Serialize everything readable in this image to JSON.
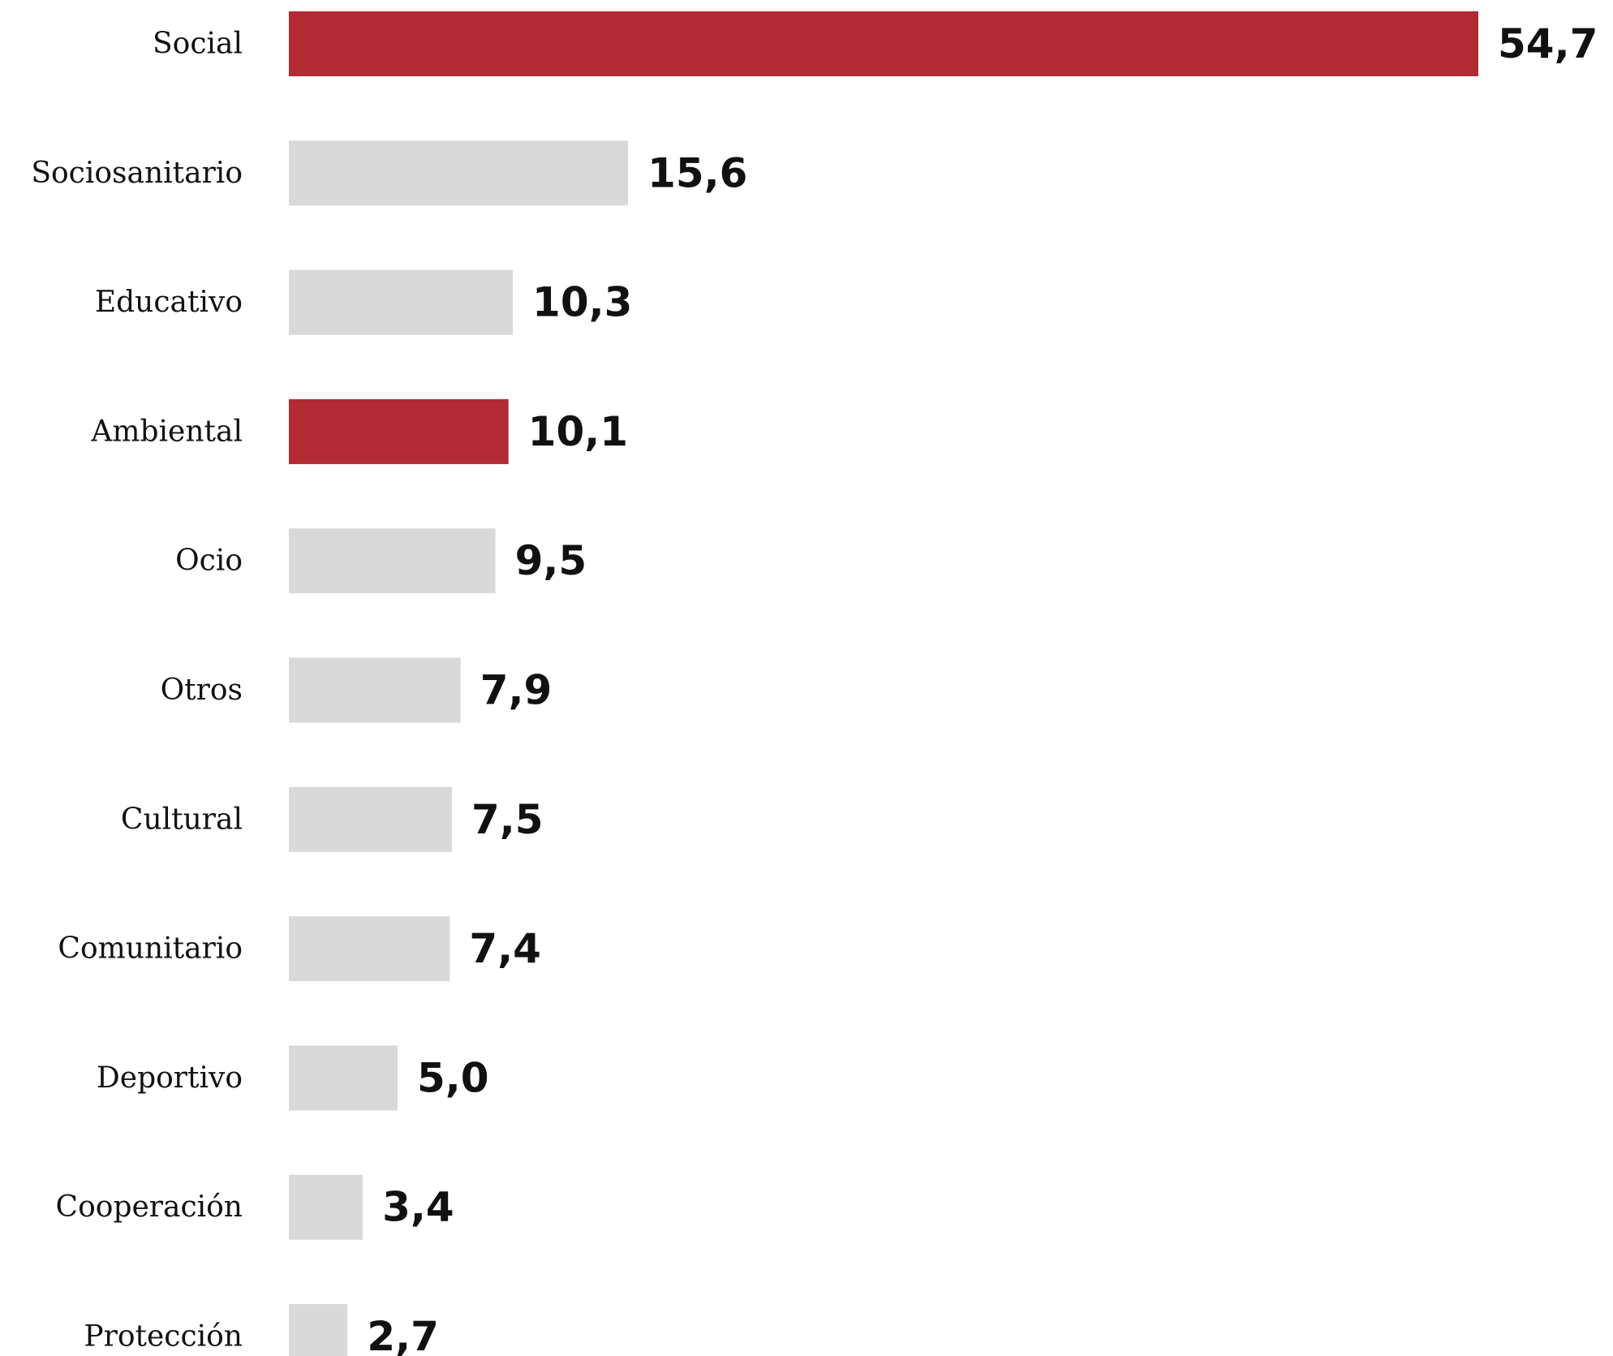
{
  "chart_data": {
    "type": "bar",
    "orientation": "horizontal",
    "title": "",
    "xlabel": "",
    "ylabel": "",
    "categories": [
      "Social",
      "Sociosanitario",
      "Educativo",
      "Ambiental",
      "Ocio",
      "Otros",
      "Cultural",
      "Comunitario",
      "Deportivo",
      "Cooperación",
      "Protección"
    ],
    "values": [
      54.7,
      15.6,
      10.3,
      10.1,
      9.5,
      7.9,
      7.5,
      7.4,
      5.0,
      3.4,
      2.7
    ],
    "value_labels": [
      "54,7",
      "15,6",
      "10,3",
      "10,1",
      "9,5",
      "7,9",
      "7,5",
      "7,4",
      "5,0",
      "3,4",
      "2,7"
    ],
    "highlighted": [
      "Social",
      "Ambiental"
    ],
    "xlim": [
      0,
      54.7
    ],
    "grid": false,
    "legend": "none",
    "colors": {
      "highlight": "#b22a33",
      "default": "#d9d9d9",
      "text": "#111111"
    }
  }
}
